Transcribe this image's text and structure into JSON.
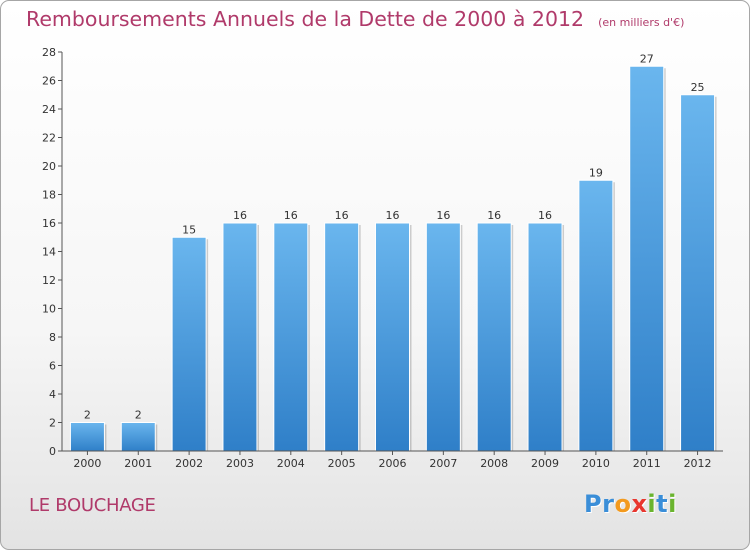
{
  "chart_data": {
    "type": "bar",
    "title": "Remboursements Annuels de la Dette de 2000 à 2012",
    "unit": "(en milliers d'€)",
    "categories": [
      "2000",
      "2001",
      "2002",
      "2003",
      "2004",
      "2005",
      "2006",
      "2007",
      "2008",
      "2009",
      "2010",
      "2011",
      "2012"
    ],
    "values": [
      2,
      2,
      15,
      16,
      16,
      16,
      16,
      16,
      16,
      16,
      19,
      27,
      25
    ],
    "ylim": [
      0,
      28
    ],
    "yticks": [
      0,
      2,
      4,
      6,
      8,
      10,
      12,
      14,
      16,
      18,
      20,
      22,
      24,
      26,
      28
    ],
    "grid": false,
    "bar_color": "#4a9be0",
    "bar_color_light": "#6ab6ee",
    "bar_color_dark": "#2f7fc8"
  },
  "commune": "LE BOUCHAGE",
  "logo": {
    "letters": [
      "P",
      "r",
      "o",
      "x",
      "i",
      "t",
      "i"
    ],
    "colors": [
      "#3a8ed8",
      "#3a8ed8",
      "#f39a1e",
      "#e8362e",
      "#6ab42e",
      "#3a8ed8",
      "#6ab42e"
    ]
  }
}
